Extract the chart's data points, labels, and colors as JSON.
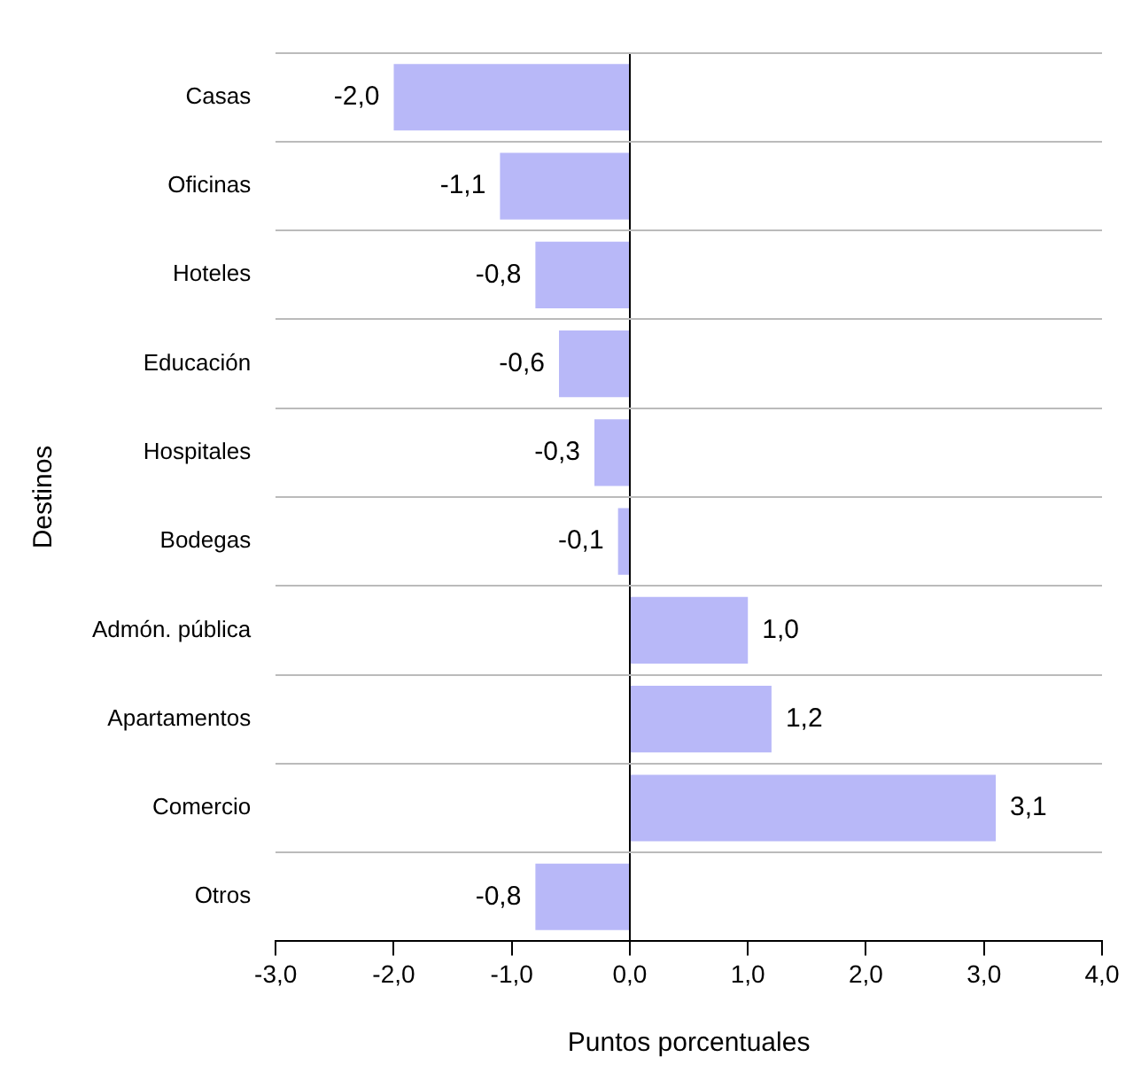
{
  "chart_data": {
    "type": "bar",
    "orientation": "horizontal",
    "ylabel": "Destinos",
    "xlabel": "Puntos porcentuales",
    "categories": [
      "Casas",
      "Oficinas",
      "Hoteles",
      "Educación",
      "Hospitales",
      "Bodegas",
      "Admón. pública",
      "Apartamentos",
      "Comercio",
      "Otros"
    ],
    "values": [
      -2.0,
      -1.1,
      -0.8,
      -0.6,
      -0.3,
      -0.1,
      1.0,
      1.2,
      3.1,
      -0.8
    ],
    "value_labels": [
      "-2,0",
      "-1,1",
      "-0,8",
      "-0,6",
      "-0,3",
      "-0,1",
      "1,0",
      "1,2",
      "3,1",
      "-0,8"
    ],
    "color": "#b8b8f8",
    "xlim": [
      -3,
      4
    ],
    "xticks": [
      {
        "value": -3,
        "label": "-3,0"
      },
      {
        "value": -2,
        "label": "-2,0"
      },
      {
        "value": -1,
        "label": "-1,0"
      },
      {
        "value": 0,
        "label": "0,0"
      },
      {
        "value": 1,
        "label": "1,0"
      },
      {
        "value": 2,
        "label": "2,0"
      },
      {
        "value": 3,
        "label": "3,0"
      },
      {
        "value": 4,
        "label": "4,0"
      }
    ],
    "grid": "y",
    "legend": false
  }
}
